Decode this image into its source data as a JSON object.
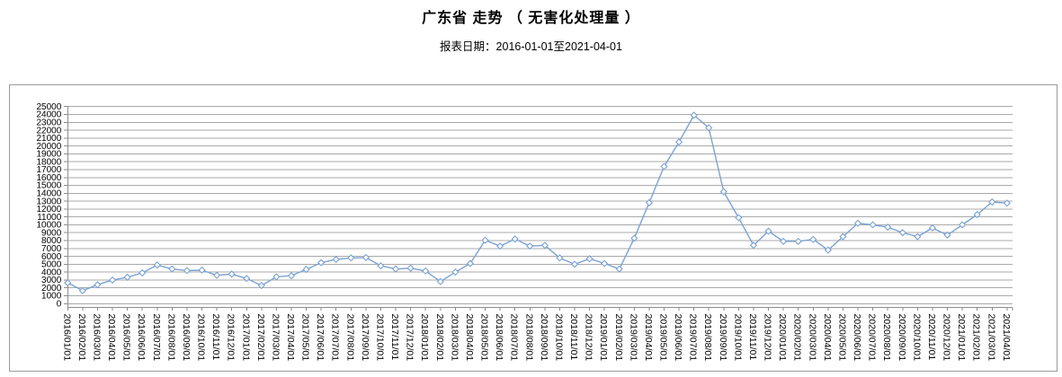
{
  "header": {
    "title": "广东省 走势 （ 无害化处理量 ）",
    "subtitle": "报表日期：2016-01-01至2021-04-01"
  },
  "chart_data": {
    "type": "line",
    "title": "广东省 走势 （ 无害化处理量 ）",
    "subtitle": "报表日期：2016-01-01至2021-04-01",
    "x": [
      "2016/01/01",
      "2016/02/01",
      "2016/03/01",
      "2016/04/01",
      "2016/05/01",
      "2016/06/01",
      "2016/07/01",
      "2016/08/01",
      "2016/09/01",
      "2016/10/01",
      "2016/11/01",
      "2016/12/01",
      "2017/01/01",
      "2017/02/01",
      "2017/03/01",
      "2017/04/01",
      "2017/05/01",
      "2017/06/01",
      "2017/07/01",
      "2017/08/01",
      "2017/09/01",
      "2017/10/01",
      "2017/11/01",
      "2017/12/01",
      "2018/01/01",
      "2018/02/01",
      "2018/03/01",
      "2018/04/01",
      "2018/05/01",
      "2018/06/01",
      "2018/07/01",
      "2018/08/01",
      "2018/09/01",
      "2018/10/01",
      "2018/11/01",
      "2018/12/01",
      "2019/01/01",
      "2019/02/01",
      "2019/03/01",
      "2019/04/01",
      "2019/05/01",
      "2019/06/01",
      "2019/07/01",
      "2019/08/01",
      "2019/09/01",
      "2019/10/01",
      "2019/11/01",
      "2019/12/01",
      "2020/01/01",
      "2020/02/01",
      "2020/03/01",
      "2020/04/01",
      "2020/05/01",
      "2020/06/01",
      "2020/07/01",
      "2020/08/01",
      "2020/09/01",
      "2020/10/01",
      "2020/11/01",
      "2020/12/01",
      "2021/01/01",
      "2021/02/01",
      "2021/03/01",
      "2021/04/01"
    ],
    "series": [
      {
        "name": "无害化处理量",
        "values": [
          2650,
          1650,
          2400,
          3000,
          3350,
          3900,
          4900,
          4400,
          4200,
          4250,
          3600,
          3750,
          3200,
          2300,
          3400,
          3550,
          4350,
          5200,
          5600,
          5800,
          5850,
          4800,
          4400,
          4500,
          4150,
          2800,
          4000,
          5100,
          8050,
          7300,
          8200,
          7300,
          7400,
          5800,
          5000,
          5700,
          5100,
          4400,
          8300,
          12800,
          17400,
          20500,
          23900,
          22300,
          14200,
          10900,
          7400,
          9200,
          7900,
          7900,
          8150,
          6800,
          8500,
          10200,
          10000,
          9700,
          9000,
          8500,
          9600,
          8700,
          10000,
          11300,
          12900,
          12750
        ]
      }
    ],
    "xlabel": "",
    "ylabel": "",
    "ylim": [
      0,
      25000
    ],
    "ytick_step": 1000,
    "grid": true,
    "legend_position": "none",
    "x_label_rotation": 90,
    "line_color": "#7BA2D4",
    "marker": "diamond-hollow",
    "marker_fill": "#FFFFFF",
    "grid_color": "#A9A9A9",
    "axis_color": "#8C8C8C",
    "text_color": "#000000"
  }
}
